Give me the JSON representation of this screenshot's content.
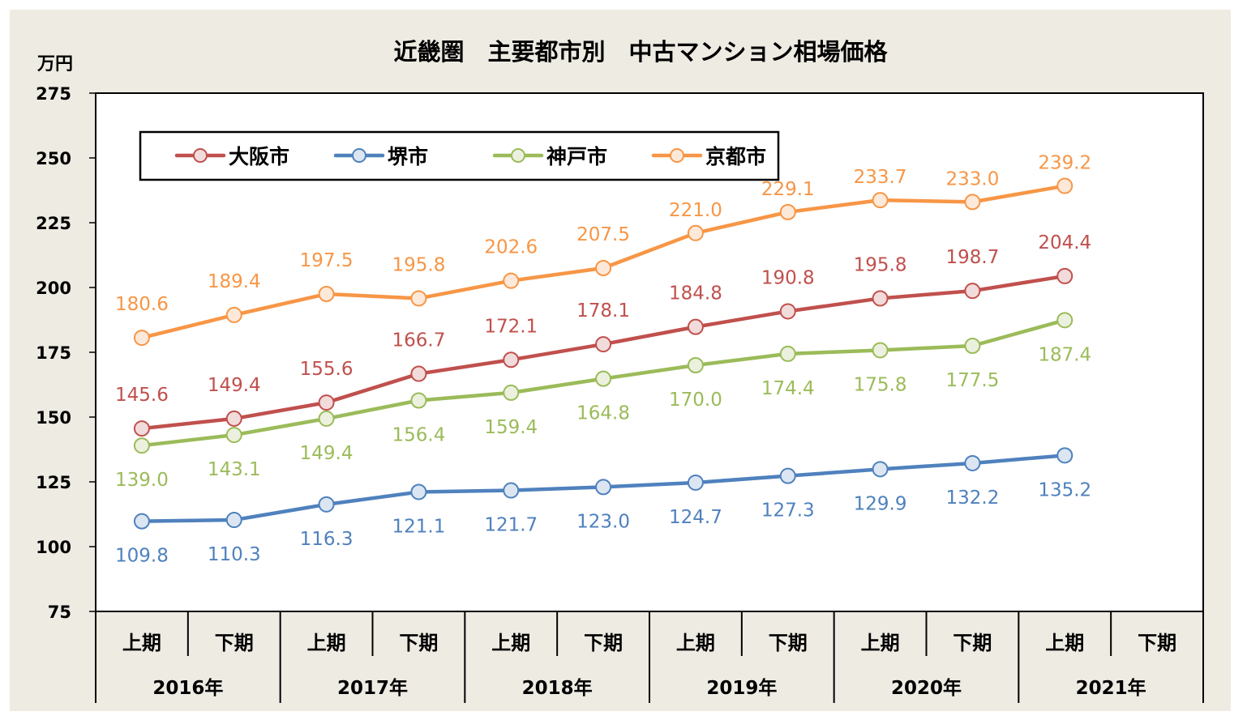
{
  "chart_data": {
    "type": "line",
    "title": "近畿圏　主要都市別　中古マンション相場価格",
    "ylabel": "万円",
    "ylim": [
      75,
      275
    ],
    "yticks": [
      75,
      100,
      125,
      150,
      175,
      200,
      225,
      250,
      275
    ],
    "categories": [
      "上期",
      "下期",
      "上期",
      "下期",
      "上期",
      "下期",
      "上期",
      "下期",
      "上期",
      "下期",
      "上期",
      "下期"
    ],
    "years": [
      "2016年",
      "2017年",
      "2018年",
      "2019年",
      "2020年",
      "2021年"
    ],
    "legend_position": "top-left",
    "series": [
      {
        "name": "大阪市",
        "color": "#C0504D",
        "fill": "#F2DCDB",
        "label_pos": "above",
        "values": [
          145.6,
          149.4,
          155.6,
          166.7,
          172.1,
          178.1,
          184.8,
          190.8,
          195.8,
          198.7,
          204.4,
          null
        ]
      },
      {
        "name": "堺市",
        "color": "#4F81BD",
        "fill": "#DCE6F2",
        "label_pos": "below",
        "values": [
          109.8,
          110.3,
          116.3,
          121.1,
          121.7,
          123.0,
          124.7,
          127.3,
          129.9,
          132.2,
          135.2,
          null
        ]
      },
      {
        "name": "神戸市",
        "color": "#9BBB59",
        "fill": "#EBF1DE",
        "label_pos": "below",
        "values": [
          139.0,
          143.1,
          149.4,
          156.4,
          159.4,
          164.8,
          170.0,
          174.4,
          175.8,
          177.5,
          187.4,
          null
        ]
      },
      {
        "name": "京都市",
        "color": "#F79646",
        "fill": "#FDE9D9",
        "label_pos": "above",
        "values": [
          180.6,
          189.4,
          197.5,
          195.8,
          202.6,
          207.5,
          221.0,
          229.1,
          233.7,
          233.0,
          239.2,
          null
        ]
      }
    ]
  }
}
